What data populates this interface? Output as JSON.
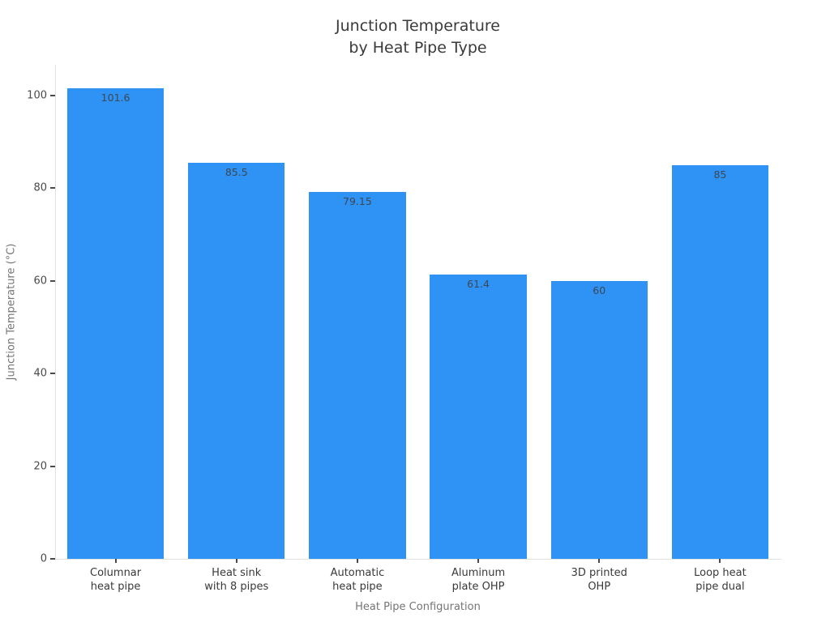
{
  "page": {
    "background": "#ffffff"
  },
  "chart_data": {
    "type": "bar",
    "title_lines": [
      "Junction Temperature",
      "by Heat Pipe Type"
    ],
    "xlabel": "Heat Pipe Configuration",
    "ylabel": "Junction Temperature (°C)",
    "categories": [
      "Columnar\nheat pipe",
      "Heat sink\nwith 8 pipes",
      "Automatic\nheat pipe",
      "Aluminum\nplate OHP",
      "3D printed\nOHP",
      "Loop heat\npipe dual"
    ],
    "category_lines": [
      [
        "Columnar",
        "heat pipe"
      ],
      [
        "Heat sink",
        "with 8 pipes"
      ],
      [
        "Automatic",
        "heat pipe"
      ],
      [
        "Aluminum",
        "plate OHP"
      ],
      [
        "3D printed",
        "OHP"
      ],
      [
        "Loop heat",
        "pipe dual"
      ]
    ],
    "values": [
      101.6,
      85.5,
      79.15,
      61.4,
      60,
      85
    ],
    "value_labels": [
      "101.6",
      "85.5",
      "79.15",
      "61.4",
      "60",
      "85"
    ],
    "yticks": [
      0,
      20,
      40,
      60,
      80,
      100
    ],
    "ylim": [
      0,
      106.6
    ],
    "bar_color": "#2e93f5",
    "value_label_color": "#3d4752",
    "grid": false,
    "legend": null,
    "bar_width_fraction": 0.8
  }
}
